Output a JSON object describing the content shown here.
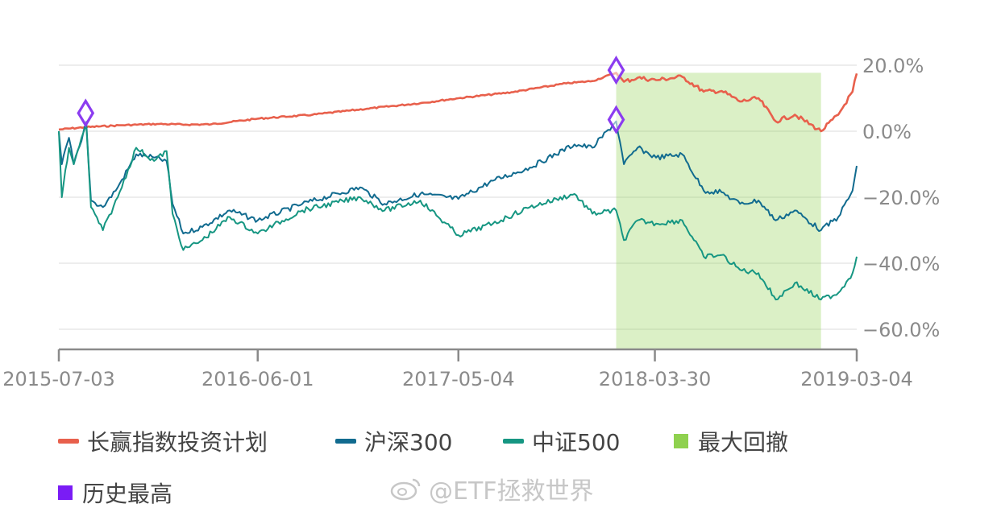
{
  "chart_data": {
    "type": "line",
    "x_ticks": [
      "2015-07-03",
      "2016-06-01",
      "2017-05-04",
      "2018-03-30",
      "2019-03-04"
    ],
    "y_ticks": [
      "20.0%",
      "0.0%",
      "−20.0%",
      "−40.0%",
      "−60.0%"
    ],
    "y_tick_values": [
      20,
      0,
      -20,
      -40,
      -60
    ],
    "ylim": [
      -66,
      24
    ],
    "xlim": [
      "2015-07-03",
      "2019-03-04"
    ],
    "grid": true,
    "legend_position": "bottom",
    "colors": {
      "plan": "#e8604c",
      "hs300": "#116b8f",
      "zz500": "#169682",
      "drawdown": "#8fd14f",
      "peak": "#8b3cf0"
    },
    "series": [
      {
        "name": "长赢指数投资计划",
        "key": "plan",
        "points": [
          [
            "2015-07-03",
            0.5
          ],
          [
            "2015-08-15",
            1.2
          ],
          [
            "2015-10-15",
            1.8
          ],
          [
            "2015-12-15",
            2.2
          ],
          [
            "2016-02-01",
            2.0
          ],
          [
            "2016-03-15",
            2.1
          ],
          [
            "2016-06-01",
            3.8
          ],
          [
            "2016-09-01",
            5.0
          ],
          [
            "2016-12-01",
            6.8
          ],
          [
            "2017-03-01",
            8.5
          ],
          [
            "2017-05-04",
            10.0
          ],
          [
            "2017-08-01",
            11.8
          ],
          [
            "2017-11-01",
            14.5
          ],
          [
            "2017-12-15",
            15.2
          ],
          [
            "2018-01-24",
            17.7
          ],
          [
            "2018-02-06",
            15.0
          ],
          [
            "2018-03-01",
            16.2
          ],
          [
            "2018-04-01",
            15.5
          ],
          [
            "2018-05-15",
            16.5
          ],
          [
            "2018-06-20",
            12.0
          ],
          [
            "2018-07-20",
            12.2
          ],
          [
            "2018-08-20",
            9.0
          ],
          [
            "2018-09-20",
            10.0
          ],
          [
            "2018-10-19",
            3.0
          ],
          [
            "2018-11-20",
            5.0
          ],
          [
            "2019-01-03",
            0.0
          ],
          [
            "2019-02-01",
            5.0
          ],
          [
            "2019-02-25",
            12.0
          ],
          [
            "2019-03-04",
            17.5
          ]
        ]
      },
      {
        "name": "沪深300",
        "key": "hs300",
        "points": [
          [
            "2015-07-03",
            0.0
          ],
          [
            "2015-07-08",
            -10.0
          ],
          [
            "2015-07-20",
            -2.0
          ],
          [
            "2015-07-28",
            -10.0
          ],
          [
            "2015-08-10",
            -3.0
          ],
          [
            "2015-08-18",
            3.0
          ],
          [
            "2015-08-26",
            -21.0
          ],
          [
            "2015-09-15",
            -23.0
          ],
          [
            "2015-10-10",
            -17.0
          ],
          [
            "2015-11-10",
            -7.0
          ],
          [
            "2015-12-10",
            -8.0
          ],
          [
            "2015-12-31",
            -9.0
          ],
          [
            "2016-01-10",
            -22.0
          ],
          [
            "2016-01-28",
            -31.0
          ],
          [
            "2016-02-29",
            -29.0
          ],
          [
            "2016-04-15",
            -24.0
          ],
          [
            "2016-06-01",
            -27.0
          ],
          [
            "2016-08-15",
            -22.0
          ],
          [
            "2016-11-20",
            -17.0
          ],
          [
            "2016-12-31",
            -22.0
          ],
          [
            "2017-03-01",
            -19.0
          ],
          [
            "2017-05-04",
            -20.5
          ],
          [
            "2017-07-01",
            -15.0
          ],
          [
            "2017-09-01",
            -11.0
          ],
          [
            "2017-11-15",
            -4.0
          ],
          [
            "2017-12-15",
            -5.0
          ],
          [
            "2018-01-24",
            3.0
          ],
          [
            "2018-02-06",
            -10.0
          ],
          [
            "2018-03-01",
            -5.0
          ],
          [
            "2018-04-01",
            -8.0
          ],
          [
            "2018-05-15",
            -7.0
          ],
          [
            "2018-06-20",
            -18.0
          ],
          [
            "2018-07-20",
            -18.5
          ],
          [
            "2018-08-20",
            -22.0
          ],
          [
            "2018-09-20",
            -21.0
          ],
          [
            "2018-10-19",
            -27.0
          ],
          [
            "2018-11-20",
            -24.0
          ],
          [
            "2019-01-03",
            -30.0
          ],
          [
            "2019-02-01",
            -26.0
          ],
          [
            "2019-02-25",
            -18.0
          ],
          [
            "2019-03-04",
            -10.5
          ]
        ]
      },
      {
        "name": "中证500",
        "key": "zz500",
        "points": [
          [
            "2015-07-03",
            0.0
          ],
          [
            "2015-07-08",
            -20.0
          ],
          [
            "2015-07-20",
            -5.0
          ],
          [
            "2015-07-28",
            -10.0
          ],
          [
            "2015-08-10",
            -2.0
          ],
          [
            "2015-08-18",
            2.0
          ],
          [
            "2015-08-26",
            -23.0
          ],
          [
            "2015-09-15",
            -30.0
          ],
          [
            "2015-10-10",
            -20.0
          ],
          [
            "2015-11-10",
            -5.0
          ],
          [
            "2015-12-10",
            -9.0
          ],
          [
            "2015-12-31",
            -6.0
          ],
          [
            "2016-01-10",
            -25.0
          ],
          [
            "2016-01-28",
            -36.0
          ],
          [
            "2016-02-29",
            -33.0
          ],
          [
            "2016-04-15",
            -26.0
          ],
          [
            "2016-06-01",
            -31.0
          ],
          [
            "2016-08-15",
            -24.0
          ],
          [
            "2016-11-20",
            -20.0
          ],
          [
            "2016-12-31",
            -24.0
          ],
          [
            "2017-03-01",
            -21.0
          ],
          [
            "2017-05-04",
            -31.5
          ],
          [
            "2017-07-01",
            -28.0
          ],
          [
            "2017-09-01",
            -23.0
          ],
          [
            "2017-11-15",
            -19.0
          ],
          [
            "2017-12-15",
            -25.0
          ],
          [
            "2018-01-24",
            -24.0
          ],
          [
            "2018-02-06",
            -33.0
          ],
          [
            "2018-03-01",
            -27.0
          ],
          [
            "2018-04-01",
            -28.0
          ],
          [
            "2018-05-15",
            -27.0
          ],
          [
            "2018-06-20",
            -38.0
          ],
          [
            "2018-07-20",
            -37.5
          ],
          [
            "2018-08-20",
            -42.0
          ],
          [
            "2018-09-20",
            -43.0
          ],
          [
            "2018-10-19",
            -51.0
          ],
          [
            "2018-11-20",
            -46.0
          ],
          [
            "2019-01-03",
            -51.0
          ],
          [
            "2019-02-01",
            -49.0
          ],
          [
            "2019-02-25",
            -43.0
          ],
          [
            "2019-03-04",
            -38.0
          ]
        ]
      }
    ],
    "drawdown_period": {
      "label": "最大回撤",
      "start": "2018-01-24",
      "end": "2019-01-03"
    },
    "peaks": {
      "label": "历史最高",
      "points": [
        {
          "series": "plan",
          "x": "2015-08-17",
          "y": 5.5
        },
        {
          "series": "plan",
          "x": "2018-01-24",
          "y": 18.5
        },
        {
          "series": "hs300",
          "x": "2018-01-24",
          "y": 3.5
        }
      ]
    },
    "legend": [
      {
        "label": "长赢指数投资计划",
        "color": "#e8604c",
        "kind": "line"
      },
      {
        "label": "沪深300",
        "color": "#116b8f",
        "kind": "line"
      },
      {
        "label": "中证500",
        "color": "#169682",
        "kind": "line"
      },
      {
        "label": "最大回撤",
        "color": "#8fd14f",
        "kind": "box"
      },
      {
        "label": "历史最高",
        "color": "#7a1cf5",
        "kind": "box"
      }
    ]
  },
  "watermark": {
    "text": "@ETF拯救世界",
    "icon": "weibo-icon"
  }
}
